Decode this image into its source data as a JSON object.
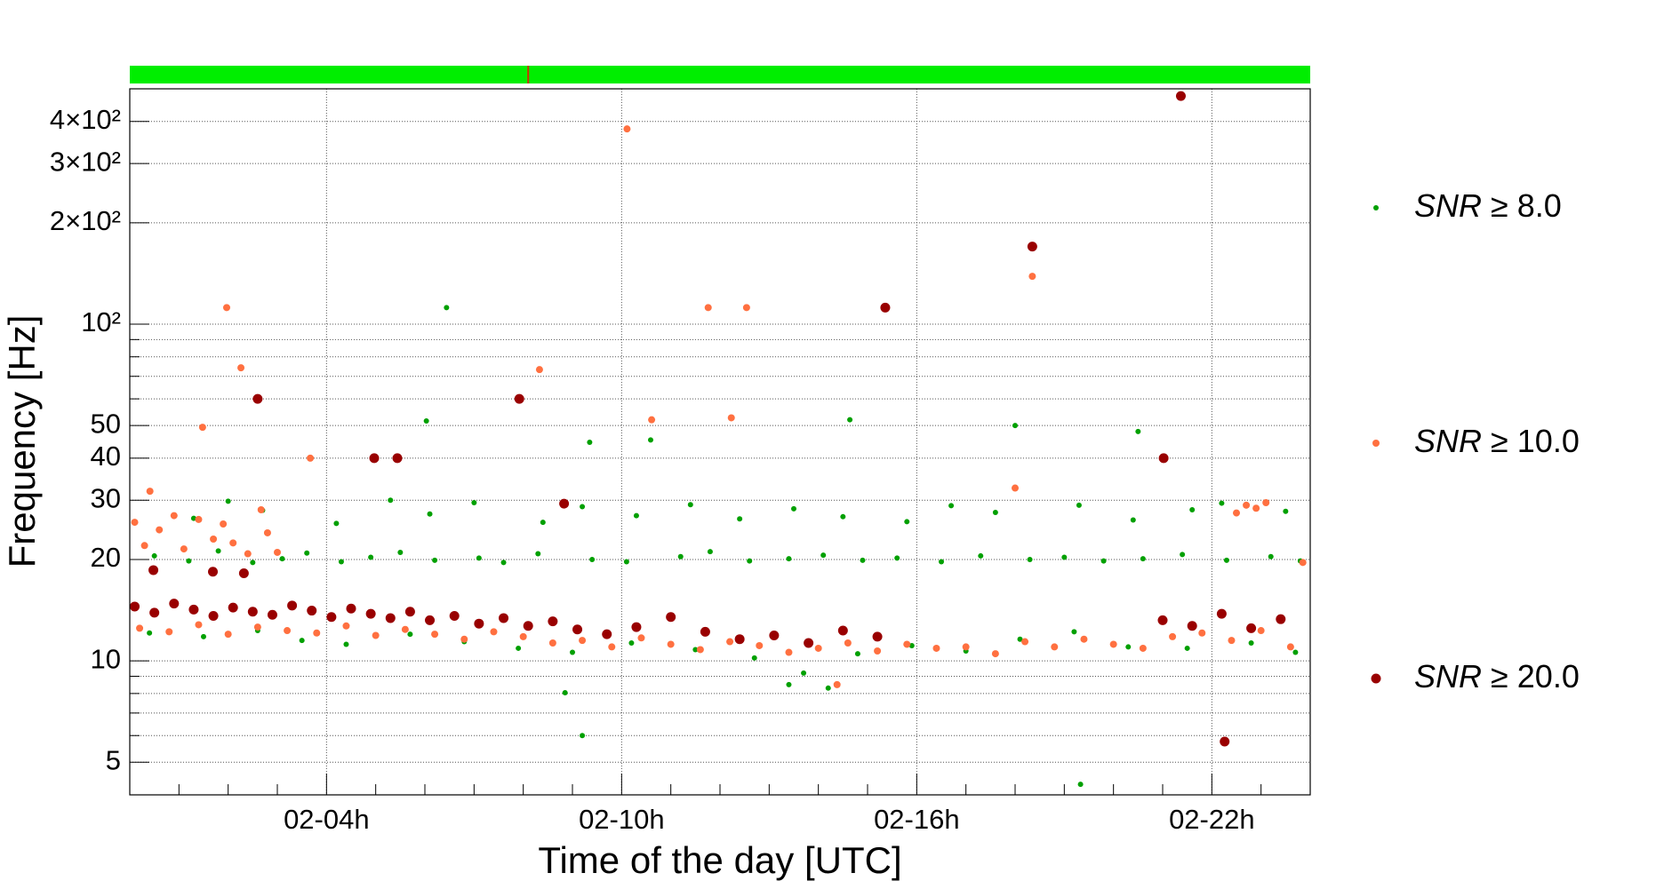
{
  "chart_data": {
    "type": "scatter",
    "xlabel": "Time of the day [UTC]",
    "ylabel": "Frequency [Hz]",
    "xlim": [
      0,
      24
    ],
    "xticks": [
      {
        "value": 4,
        "label": "02-04h"
      },
      {
        "value": 10,
        "label": "02-10h"
      },
      {
        "value": 16,
        "label": "02-16h"
      },
      {
        "value": 22,
        "label": "02-22h"
      }
    ],
    "xminor": [
      1,
      2,
      3,
      5,
      6,
      7,
      8,
      9,
      11,
      12,
      13,
      14,
      15,
      17,
      18,
      19,
      20,
      21,
      23
    ],
    "ylim": [
      4,
      500
    ],
    "log_y": true,
    "grid": true,
    "yticks": [
      5,
      10,
      20,
      30,
      40,
      50,
      {
        "value": 100,
        "label": "10²"
      },
      {
        "value": 200,
        "label": "2×10²"
      },
      {
        "value": 300,
        "label": "3×10²"
      },
      {
        "value": 400,
        "label": "4×10²"
      }
    ],
    "yminor": [
      6,
      7,
      8,
      9,
      60,
      70,
      80,
      90
    ],
    "legend": "right",
    "state_bar": {
      "color": "#00ee00",
      "flag_color": "#cc3300",
      "flags": [
        8.1
      ]
    },
    "series": [
      {
        "name": "SNR ≥ 8.0",
        "color": "#00a000",
        "x": [
          0.5,
          1.2,
          1.8,
          2.5,
          3.1,
          3.6,
          4.3,
          4.9,
          5.5,
          6.2,
          7.1,
          7.6,
          8.3,
          9.4,
          10.1,
          11.2,
          11.8,
          12.6,
          13.4,
          14.1,
          14.9,
          15.6,
          16.5,
          17.3,
          18.3,
          19.0,
          19.8,
          20.6,
          21.4,
          22.3,
          23.2,
          23.8,
          1.3,
          2.0,
          2.7,
          4.2,
          5.3,
          6.1,
          7.0,
          8.4,
          9.2,
          10.3,
          11.4,
          12.4,
          13.5,
          14.5,
          15.8,
          16.7,
          17.6,
          19.3,
          20.4,
          21.6,
          22.2,
          23.5,
          0.4,
          1.5,
          2.6,
          3.5,
          4.4,
          5.7,
          6.8,
          7.9,
          9.0,
          10.2,
          11.5,
          12.7,
          13.7,
          14.8,
          15.9,
          17.0,
          18.1,
          19.2,
          20.3,
          21.5,
          22.8,
          23.7,
          6.44,
          6.03,
          9.35,
          10.59,
          14.64,
          18.0,
          20.5,
          8.85,
          9.2,
          19.33,
          13.4,
          14.2
        ],
        "values": [
          20.5,
          19.8,
          21.2,
          19.6,
          20.1,
          20.9,
          19.7,
          20.3,
          21.0,
          19.9,
          20.2,
          19.6,
          20.8,
          20.0,
          19.7,
          20.4,
          21.1,
          19.8,
          20.1,
          20.6,
          19.9,
          20.2,
          19.7,
          20.5,
          20.0,
          20.3,
          19.8,
          20.1,
          20.7,
          19.9,
          20.4,
          19.8,
          26.5,
          29.8,
          28.0,
          25.6,
          30.0,
          27.3,
          29.5,
          25.8,
          28.7,
          27.0,
          29.1,
          26.4,
          28.3,
          26.8,
          25.9,
          28.9,
          27.6,
          29.0,
          26.2,
          28.1,
          29.4,
          27.8,
          12.1,
          11.8,
          12.3,
          11.5,
          11.2,
          12.0,
          11.4,
          10.9,
          10.6,
          11.3,
          10.8,
          10.2,
          9.2,
          10.5,
          11.1,
          10.7,
          11.6,
          12.2,
          11.0,
          10.9,
          11.3,
          10.6,
          112,
          51.6,
          44.6,
          45.3,
          52,
          50,
          48,
          8.04,
          6.0,
          4.3,
          8.5,
          8.3
        ]
      },
      {
        "name": "SNR ≥ 10.0",
        "color": "#ff7040",
        "x": [
          1.97,
          2.26,
          1.48,
          3.67,
          8.33,
          10.11,
          10.61,
          11.76,
          12.54,
          12.23,
          18.35,
          18.0,
          14.38,
          2.67,
          0.41,
          0.1,
          0.3,
          0.6,
          0.9,
          1.1,
          1.4,
          1.7,
          1.9,
          2.1,
          2.4,
          2.8,
          3.0,
          0.2,
          0.8,
          1.4,
          2.0,
          2.6,
          3.2,
          3.8,
          4.4,
          5.0,
          5.6,
          6.2,
          6.8,
          7.4,
          8.0,
          8.6,
          9.2,
          9.8,
          10.4,
          11.0,
          11.6,
          12.2,
          12.8,
          13.4,
          14.0,
          14.6,
          15.2,
          15.8,
          16.4,
          17.0,
          17.6,
          18.2,
          18.8,
          19.4,
          20.0,
          20.6,
          21.2,
          21.8,
          22.4,
          23.0,
          23.6,
          22.5,
          22.7,
          22.9,
          23.1,
          23.85
        ],
        "values": [
          112,
          74.2,
          49.4,
          40,
          73.3,
          380,
          52,
          112,
          112,
          52.7,
          138.7,
          32.6,
          8.5,
          28.1,
          31.9,
          25.8,
          22.0,
          24.5,
          27.0,
          21.5,
          26.3,
          23.0,
          25.5,
          22.4,
          20.8,
          24.0,
          21.0,
          12.5,
          12.2,
          12.8,
          12.0,
          12.6,
          12.3,
          12.1,
          12.7,
          11.9,
          12.4,
          12.0,
          11.6,
          12.2,
          11.8,
          11.3,
          11.5,
          11.0,
          11.7,
          11.2,
          10.8,
          11.4,
          11.1,
          10.6,
          10.9,
          11.3,
          10.7,
          11.2,
          10.9,
          11.0,
          10.5,
          11.4,
          11.0,
          11.6,
          11.2,
          10.9,
          11.8,
          12.1,
          11.5,
          12.3,
          11.0,
          27.5,
          29.0,
          28.4,
          29.5,
          19.6
        ]
      },
      {
        "name": "SNR ≥ 20.0",
        "color": "#990000",
        "x": [
          2.6,
          4.97,
          5.44,
          7.92,
          8.83,
          15.36,
          18.35,
          21.37,
          21.02,
          22.26,
          1.69,
          2.32,
          0.48,
          0.1,
          0.5,
          0.9,
          1.3,
          1.7,
          2.1,
          2.5,
          2.9,
          3.3,
          3.7,
          4.1,
          4.5,
          4.9,
          5.3,
          5.7,
          6.1,
          6.6,
          7.1,
          7.6,
          8.1,
          8.6,
          9.1,
          9.7,
          10.3,
          11.0,
          11.7,
          12.4,
          13.1,
          13.8,
          14.5,
          15.2,
          21.0,
          21.6,
          22.2,
          22.8,
          23.4
        ],
        "values": [
          60,
          40,
          40,
          60,
          29.3,
          112,
          170,
          476,
          40,
          5.76,
          18.4,
          18.2,
          18.6,
          14.5,
          13.9,
          14.8,
          14.2,
          13.6,
          14.4,
          14.0,
          13.7,
          14.6,
          14.1,
          13.5,
          14.3,
          13.8,
          13.4,
          14.0,
          13.2,
          13.6,
          12.9,
          13.4,
          12.7,
          13.1,
          12.4,
          12.0,
          12.6,
          13.5,
          12.2,
          11.6,
          11.9,
          11.3,
          12.3,
          11.8,
          13.2,
          12.7,
          13.8,
          12.5,
          13.3
        ]
      }
    ]
  }
}
